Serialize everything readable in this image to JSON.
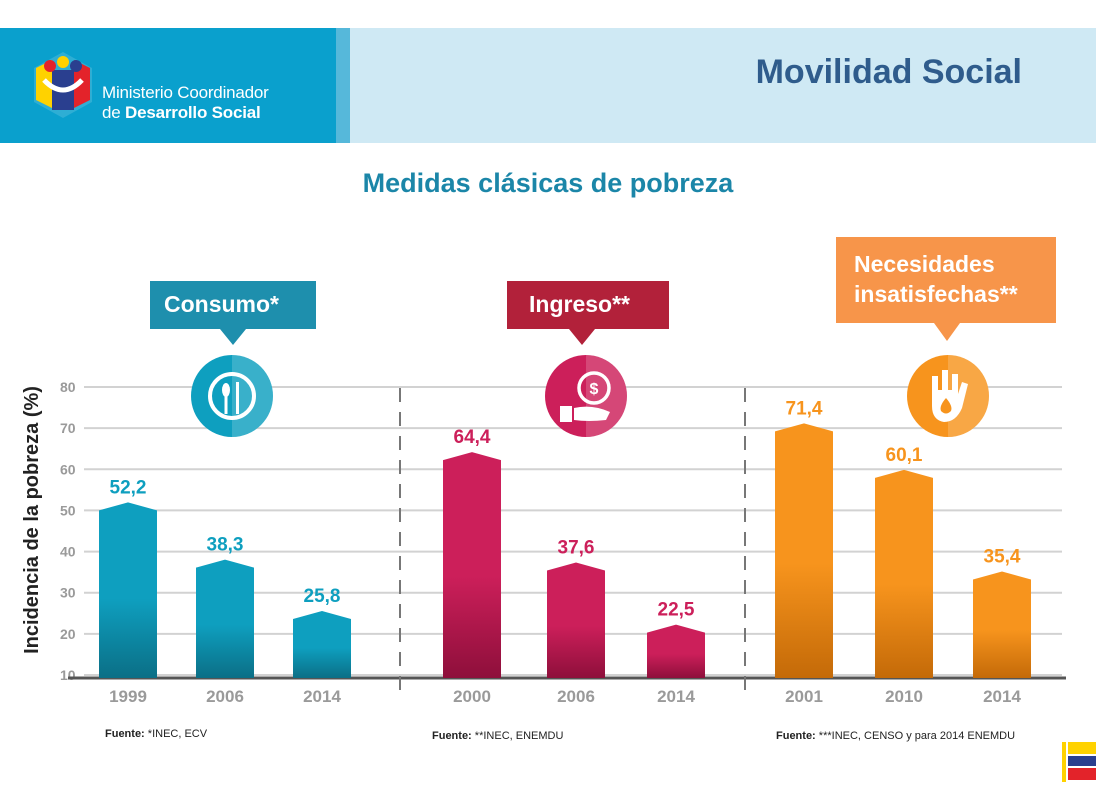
{
  "header": {
    "org_line1": "Ministerio Coordinador",
    "org_line2_prefix": "de ",
    "org_line2_bold": "Desarrollo Social",
    "title": "Movilidad Social"
  },
  "subtitle": "Medidas clásicas de pobreza",
  "callouts": {
    "consumo": "Consumo*",
    "ingreso": "Ingreso**",
    "necesidades_line1": "Necesidades",
    "necesidades_line2": "insatisfechas**"
  },
  "sources": {
    "label": "Fuente:",
    "consumo": "*INEC, ECV",
    "ingreso": "**INEC, ENEMDU",
    "necesidades": "***INEC, CENSO y para 2014 ENEMDU"
  },
  "colors": {
    "consumo": "#0e9fbf",
    "ingreso": "#c2185b",
    "necesidades": "#f39200",
    "header_blue": "#0aa0cd",
    "title_blue": "#2f5c8c"
  },
  "chart_data": {
    "type": "bar",
    "ylabel": "Incidencia de la pobreza (%)",
    "yticks": [
      10,
      20,
      30,
      40,
      50,
      60,
      70,
      80
    ],
    "ylim": [
      10,
      80
    ],
    "groups": [
      {
        "name": "Consumo*",
        "categories": [
          "1999",
          "2006",
          "2014"
        ],
        "values": [
          52.2,
          38.3,
          25.8
        ],
        "labels": [
          "52,2",
          "38,3",
          "25,8"
        ],
        "color": "#0e9fbf",
        "dark": "#0b6f86",
        "icon": "food-icon"
      },
      {
        "name": "Ingreso**",
        "categories": [
          "2000",
          "2006",
          "2014"
        ],
        "values": [
          64.4,
          37.6,
          22.5
        ],
        "labels": [
          "64,4",
          "37,6",
          "22,5"
        ],
        "color": "#cc1f5a",
        "dark": "#8e0f3b",
        "icon": "money-hand-icon"
      },
      {
        "name": "Necesidades insatisfechas**",
        "categories": [
          "2001",
          "2010",
          "2014"
        ],
        "values": [
          71.4,
          60.1,
          35.4
        ],
        "labels": [
          "71,4",
          "60,1",
          "35,4"
        ],
        "color": "#f7941d",
        "dark": "#c46a08",
        "icon": "hand-drop-icon"
      }
    ]
  }
}
